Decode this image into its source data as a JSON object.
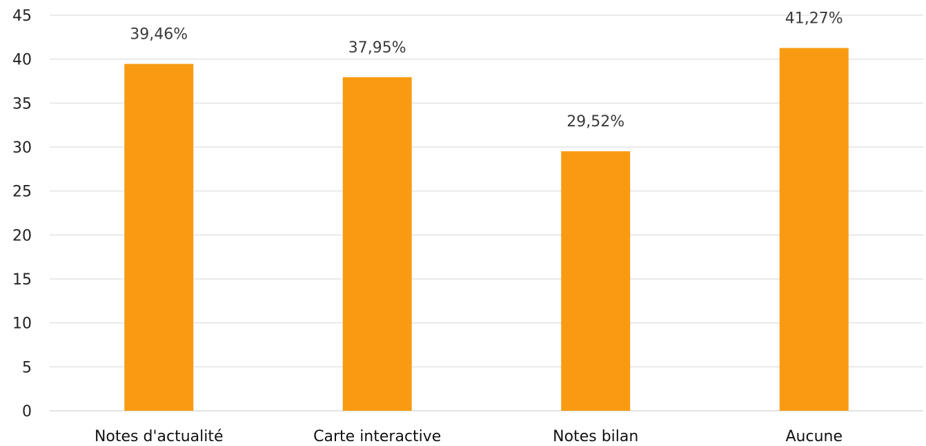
{
  "chart_data": {
    "type": "bar",
    "categories": [
      "Notes d'actualité",
      "Carte interactive",
      "Notes bilan",
      "Aucune"
    ],
    "values": [
      39.46,
      37.95,
      29.52,
      41.27
    ],
    "data_labels": [
      "39,46%",
      "37,95%",
      "29,52%",
      "41,27%"
    ],
    "y_ticks": [
      "0",
      "5",
      "10",
      "15",
      "20",
      "25",
      "30",
      "35",
      "40",
      "45"
    ],
    "ylim": [
      0,
      45
    ],
    "grid": true,
    "legend": "none",
    "bar_color": "#f99b12",
    "grid_color": "#e3e3e3"
  }
}
